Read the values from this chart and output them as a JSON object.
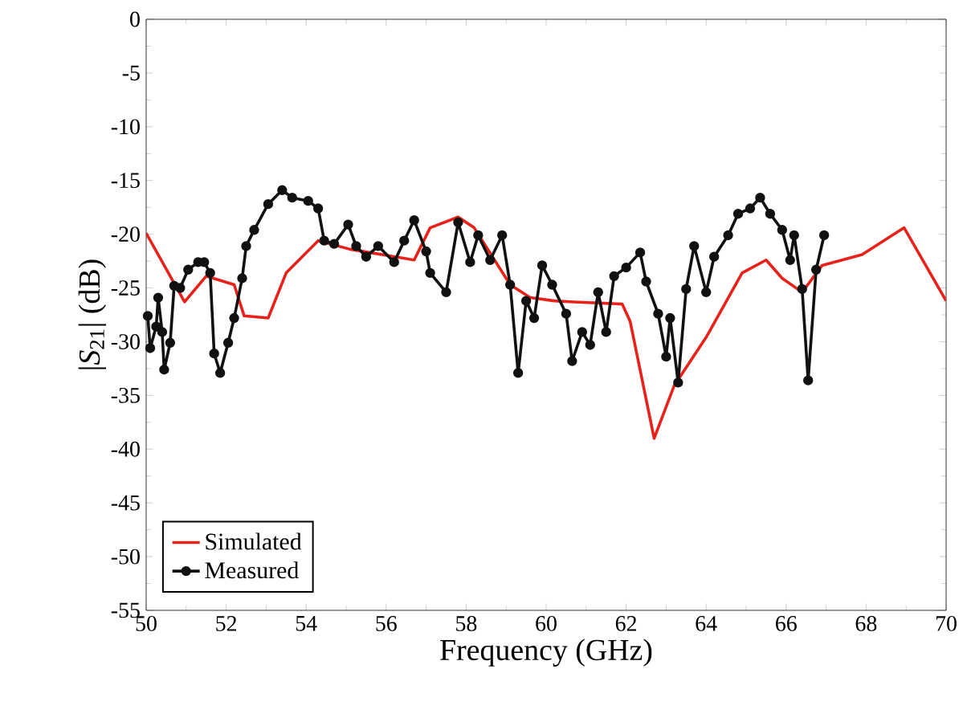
{
  "chart_data": {
    "type": "line",
    "xlabel": "Frequency  (GHz)",
    "ylabel": "|*S*$_{21}$| (dB)",
    "xlim": [
      50,
      70
    ],
    "ylim": [
      -55,
      0
    ],
    "xticks": [
      50,
      52,
      54,
      56,
      58,
      60,
      62,
      64,
      66,
      68,
      70
    ],
    "yticks": [
      -55,
      -50,
      -45,
      -40,
      -35,
      -30,
      -25,
      -20,
      -15,
      -10,
      -5,
      0
    ],
    "legend": "bottom left",
    "grid": false,
    "series": [
      {
        "name": "Simulated",
        "color": "#e8221b",
        "marker": "none",
        "x": [
          50,
          50.96,
          51.5,
          52.2,
          52.45,
          53.05,
          53.5,
          54.3,
          55.1,
          56.7,
          57.1,
          57.8,
          58.2,
          59.1,
          59.6,
          60.2,
          60.7,
          61.9,
          62.1,
          62.7,
          63.2,
          64.0,
          64.9,
          65.5,
          65.9,
          66.4,
          66.9,
          67.9,
          68.95,
          70
        ],
        "values": [
          -19.9,
          -26.3,
          -23.9,
          -24.7,
          -27.6,
          -27.8,
          -23.6,
          -20.6,
          -21.4,
          -22.4,
          -19.4,
          -18.4,
          -19.4,
          -24.7,
          -25.9,
          -26.2,
          -26.3,
          -26.5,
          -28.1,
          -39.0,
          -34.1,
          -29.6,
          -23.6,
          -22.4,
          -24.1,
          -25.4,
          -22.9,
          -21.9,
          -19.4,
          -26.2
        ]
      },
      {
        "name": "Measured",
        "color": "#111111",
        "marker": "circle",
        "x": [
          50.04,
          50.1,
          50.25,
          50.3,
          50.4,
          50.45,
          50.6,
          50.7,
          50.85,
          51.05,
          51.3,
          51.45,
          51.6,
          51.7,
          51.85,
          52.05,
          52.2,
          52.4,
          52.5,
          52.7,
          53.05,
          53.4,
          53.65,
          54.05,
          54.3,
          54.45,
          54.7,
          55.05,
          55.25,
          55.5,
          55.8,
          56.2,
          56.45,
          56.7,
          57.0,
          57.1,
          57.5,
          57.8,
          58.1,
          58.3,
          58.6,
          58.9,
          59.1,
          59.3,
          59.5,
          59.7,
          59.9,
          60.15,
          60.5,
          60.65,
          60.9,
          61.1,
          61.3,
          61.5,
          61.7,
          62.0,
          62.35,
          62.5,
          62.8,
          63.0,
          63.1,
          63.3,
          63.5,
          63.7,
          64.0,
          64.2,
          64.55,
          64.8,
          65.1,
          65.35,
          65.6,
          65.9,
          66.1,
          66.2,
          66.4,
          66.55,
          66.75,
          66.95
        ],
        "values": [
          -27.6,
          -30.6,
          -28.6,
          -25.9,
          -29.1,
          -32.6,
          -30.1,
          -24.8,
          -25.0,
          -23.3,
          -22.6,
          -22.6,
          -23.6,
          -31.1,
          -32.9,
          -30.1,
          -27.8,
          -24.1,
          -21.1,
          -19.6,
          -17.2,
          -15.9,
          -16.6,
          -16.9,
          -17.6,
          -20.6,
          -20.9,
          -19.1,
          -21.1,
          -22.1,
          -21.1,
          -22.6,
          -20.6,
          -18.7,
          -21.6,
          -23.6,
          -25.4,
          -18.9,
          -22.6,
          -20.1,
          -22.4,
          -20.1,
          -24.7,
          -32.9,
          -26.2,
          -27.8,
          -22.9,
          -24.7,
          -27.4,
          -31.8,
          -29.1,
          -30.3,
          -25.4,
          -29.1,
          -23.9,
          -23.1,
          -21.7,
          -24.4,
          -27.4,
          -31.4,
          -27.8,
          -33.8,
          -25.1,
          -21.1,
          -25.4,
          -22.1,
          -20.1,
          -18.1,
          -17.6,
          -16.6,
          -18.1,
          -19.6,
          -22.4,
          -20.1,
          -25.1,
          -33.6,
          -23.3,
          -20.1
        ]
      }
    ]
  }
}
